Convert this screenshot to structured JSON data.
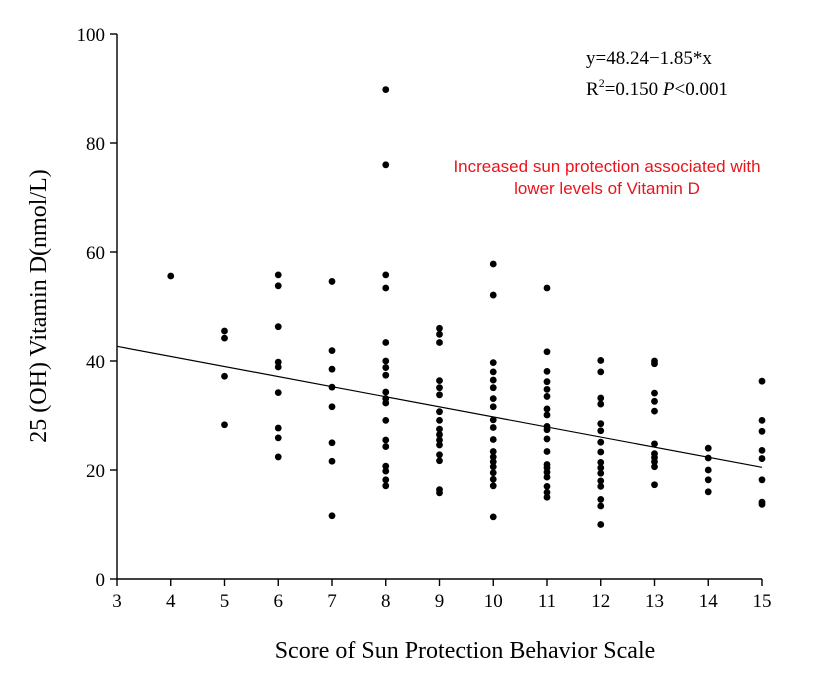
{
  "chart_data": {
    "type": "scatter",
    "xlabel": "Score of Sun Protection Behavior Scale",
    "ylabel": "25 (OH) Vitamin D(nmol/L)",
    "xlim": [
      3,
      15
    ],
    "ylim": [
      0,
      100
    ],
    "x_ticks": [
      "3",
      "4",
      "5",
      "6",
      "7",
      "8",
      "9",
      "10",
      "11",
      "12",
      "13",
      "14",
      "15"
    ],
    "y_ticks": [
      "0",
      "20",
      "40",
      "60",
      "80",
      "100"
    ],
    "grid": false,
    "equation": "y=48.24−1.85*x",
    "r2_prefix": "R",
    "r2_sup": "2",
    "r2_value": "=0.150 ",
    "p_label": "P",
    "p_value": "<0.001",
    "annotation_line1": "Increased sun protection associated with",
    "annotation_line2": "lower levels of Vitamin D",
    "annotation_color": "#e8141b",
    "regression": {
      "intercept": 48.24,
      "slope": -1.85,
      "x_start": 3,
      "x_end": 15
    },
    "points": [
      [
        4,
        55.6
      ],
      [
        5,
        45.5
      ],
      [
        5,
        44.2
      ],
      [
        5,
        37.2
      ],
      [
        5,
        28.3
      ],
      [
        6,
        55.8
      ],
      [
        6,
        53.8
      ],
      [
        6,
        46.3
      ],
      [
        6,
        39.8
      ],
      [
        6,
        38.9
      ],
      [
        6,
        34.2
      ],
      [
        6,
        27.7
      ],
      [
        6,
        25.9
      ],
      [
        6,
        22.4
      ],
      [
        7,
        54.6
      ],
      [
        7,
        41.9
      ],
      [
        7,
        38.5
      ],
      [
        7,
        35.2
      ],
      [
        7,
        31.6
      ],
      [
        7,
        25.0
      ],
      [
        7,
        21.6
      ],
      [
        7,
        11.6
      ],
      [
        8,
        89.8
      ],
      [
        8,
        76.0
      ],
      [
        8,
        55.8
      ],
      [
        8,
        53.4
      ],
      [
        8,
        43.4
      ],
      [
        8,
        40.0
      ],
      [
        8,
        38.8
      ],
      [
        8,
        37.4
      ],
      [
        8,
        34.3
      ],
      [
        8,
        33.1
      ],
      [
        8,
        32.3
      ],
      [
        8,
        29.1
      ],
      [
        8,
        25.5
      ],
      [
        8,
        24.3
      ],
      [
        8,
        20.7
      ],
      [
        8,
        19.8
      ],
      [
        8,
        18.2
      ],
      [
        8,
        17.1
      ],
      [
        9,
        46.0
      ],
      [
        9,
        44.9
      ],
      [
        9,
        43.4
      ],
      [
        9,
        36.4
      ],
      [
        9,
        35.1
      ],
      [
        9,
        33.8
      ],
      [
        9,
        30.7
      ],
      [
        9,
        29.1
      ],
      [
        9,
        27.5
      ],
      [
        9,
        26.5
      ],
      [
        9,
        25.5
      ],
      [
        9,
        24.6
      ],
      [
        9,
        22.8
      ],
      [
        9,
        21.7
      ],
      [
        9,
        16.4
      ],
      [
        9,
        15.8
      ],
      [
        10,
        57.8
      ],
      [
        10,
        52.1
      ],
      [
        10,
        39.7
      ],
      [
        10,
        38.0
      ],
      [
        10,
        36.5
      ],
      [
        10,
        35.1
      ],
      [
        10,
        33.1
      ],
      [
        10,
        31.6
      ],
      [
        10,
        29.2
      ],
      [
        10,
        27.8
      ],
      [
        10,
        25.6
      ],
      [
        10,
        23.4
      ],
      [
        10,
        22.4
      ],
      [
        10,
        21.5
      ],
      [
        10,
        20.6
      ],
      [
        10,
        19.5
      ],
      [
        10,
        18.3
      ],
      [
        10,
        17.1
      ],
      [
        10,
        11.4
      ],
      [
        11,
        53.4
      ],
      [
        11,
        41.7
      ],
      [
        11,
        38.1
      ],
      [
        11,
        36.2
      ],
      [
        11,
        34.8
      ],
      [
        11,
        33.5
      ],
      [
        11,
        31.2
      ],
      [
        11,
        30.1
      ],
      [
        11,
        28.0
      ],
      [
        11,
        27.4
      ],
      [
        11,
        25.7
      ],
      [
        11,
        23.4
      ],
      [
        11,
        21.0
      ],
      [
        11,
        20.4
      ],
      [
        11,
        19.6
      ],
      [
        11,
        18.7
      ],
      [
        11,
        17.0
      ],
      [
        11,
        15.9
      ],
      [
        11,
        15.0
      ],
      [
        12,
        40.1
      ],
      [
        12,
        38.0
      ],
      [
        12,
        33.2
      ],
      [
        12,
        32.1
      ],
      [
        12,
        28.5
      ],
      [
        12,
        27.2
      ],
      [
        12,
        25.1
      ],
      [
        12,
        23.3
      ],
      [
        12,
        21.4
      ],
      [
        12,
        20.4
      ],
      [
        12,
        19.4
      ],
      [
        12,
        18.0
      ],
      [
        12,
        17.0
      ],
      [
        12,
        14.6
      ],
      [
        12,
        13.4
      ],
      [
        12,
        10.0
      ],
      [
        13,
        40.0
      ],
      [
        13,
        39.5
      ],
      [
        13,
        34.1
      ],
      [
        13,
        32.6
      ],
      [
        13,
        30.8
      ],
      [
        13,
        24.8
      ],
      [
        13,
        23.0
      ],
      [
        13,
        22.3
      ],
      [
        13,
        21.5
      ],
      [
        13,
        20.6
      ],
      [
        13,
        17.3
      ],
      [
        14,
        24.0
      ],
      [
        14,
        22.2
      ],
      [
        14,
        20.0
      ],
      [
        14,
        18.2
      ],
      [
        14,
        16.0
      ],
      [
        15,
        36.3
      ],
      [
        15,
        29.1
      ],
      [
        15,
        27.1
      ],
      [
        15,
        23.6
      ],
      [
        15,
        22.1
      ],
      [
        15,
        18.2
      ],
      [
        15,
        14.1
      ],
      [
        15,
        13.7
      ]
    ]
  }
}
